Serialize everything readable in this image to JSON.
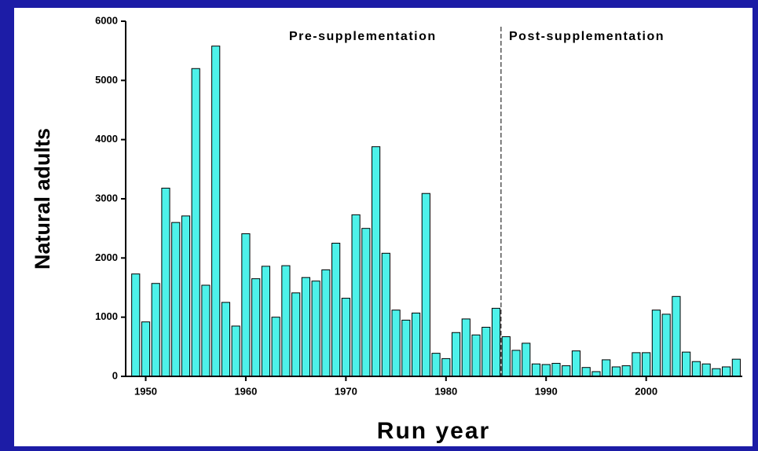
{
  "chart_data": {
    "type": "bar",
    "x_label": "Run year",
    "y_label": "Natural adults",
    "x": [
      1949,
      1950,
      1951,
      1952,
      1953,
      1954,
      1955,
      1956,
      1957,
      1958,
      1959,
      1960,
      1961,
      1962,
      1963,
      1964,
      1965,
      1966,
      1967,
      1968,
      1969,
      1970,
      1971,
      1972,
      1973,
      1974,
      1975,
      1976,
      1977,
      1978,
      1979,
      1980,
      1981,
      1982,
      1983,
      1984,
      1985,
      1986,
      1987,
      1988,
      1989,
      1990,
      1991,
      1992,
      1993,
      1994,
      1995,
      1996,
      1997,
      1998,
      1999,
      2000,
      2001,
      2002,
      2003,
      2004,
      2005,
      2006,
      2007,
      2008,
      2009
    ],
    "values": [
      1730,
      920,
      1570,
      3180,
      2600,
      2710,
      5200,
      1540,
      5580,
      1250,
      850,
      2410,
      1650,
      1860,
      1000,
      1870,
      1410,
      1670,
      1610,
      1800,
      2250,
      1320,
      2730,
      2500,
      3880,
      2080,
      1120,
      950,
      1070,
      3090,
      390,
      300,
      740,
      970,
      700,
      830,
      1150,
      670,
      440,
      560,
      210,
      200,
      220,
      180,
      430,
      150,
      80,
      280,
      160,
      180,
      400,
      400,
      1120,
      1050,
      1350,
      410,
      250,
      210,
      130,
      160,
      290
    ],
    "color": "#4df2ea",
    "xlim": [
      1948,
      2009.6
    ],
    "xticks": [
      1950,
      1960,
      1970,
      1980,
      1990,
      2000
    ],
    "ylim": [
      0,
      6000
    ],
    "yticks": [
      0,
      1000,
      2000,
      3000,
      4000,
      5000,
      6000
    ],
    "annotations": [
      {
        "text": "Pre-supplementation"
      },
      {
        "text": "Post-supplementation"
      }
    ],
    "divider_x": 1985.5
  }
}
